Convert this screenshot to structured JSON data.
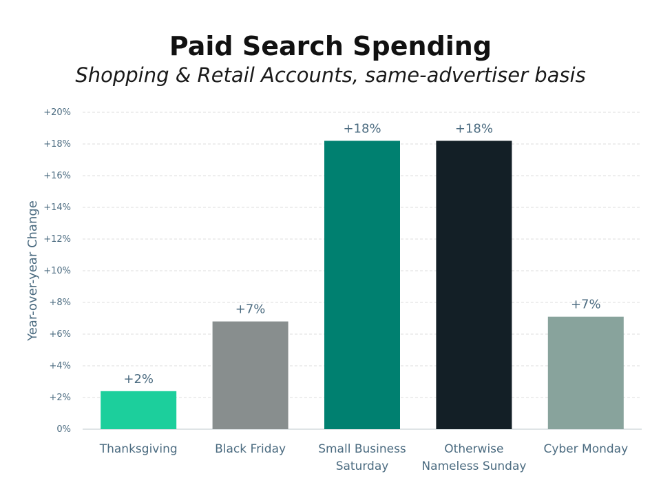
{
  "chart_data": {
    "type": "bar",
    "title": "Paid Search Spending",
    "subtitle": "Shopping & Retail Accounts, same-advertiser basis",
    "ylabel": "Year-over-year Change",
    "xlabel": "",
    "ylim": [
      0,
      20
    ],
    "yticks": [
      0,
      2,
      4,
      6,
      8,
      10,
      12,
      14,
      16,
      18,
      20
    ],
    "ytick_labels": [
      "0%",
      "+2%",
      "+4%",
      "+6%",
      "+8%",
      "+10%",
      "+12%",
      "+14%",
      "+16%",
      "+18%",
      "+20%"
    ],
    "grid": true,
    "categories": [
      [
        "Thanksgiving"
      ],
      [
        "Black Friday"
      ],
      [
        "Small Business",
        "Saturday"
      ],
      [
        "Otherwise",
        "Nameless Sunday"
      ],
      [
        "Cyber Monday"
      ]
    ],
    "values": [
      2.4,
      6.8,
      18.2,
      18.2,
      7.1
    ],
    "data_labels": [
      "+2%",
      "+7%",
      "+18%",
      "+18%",
      "+7%"
    ],
    "colors": [
      "#1ccf9c",
      "#888e8e",
      "#008070",
      "#131f26",
      "#88a39c"
    ]
  }
}
